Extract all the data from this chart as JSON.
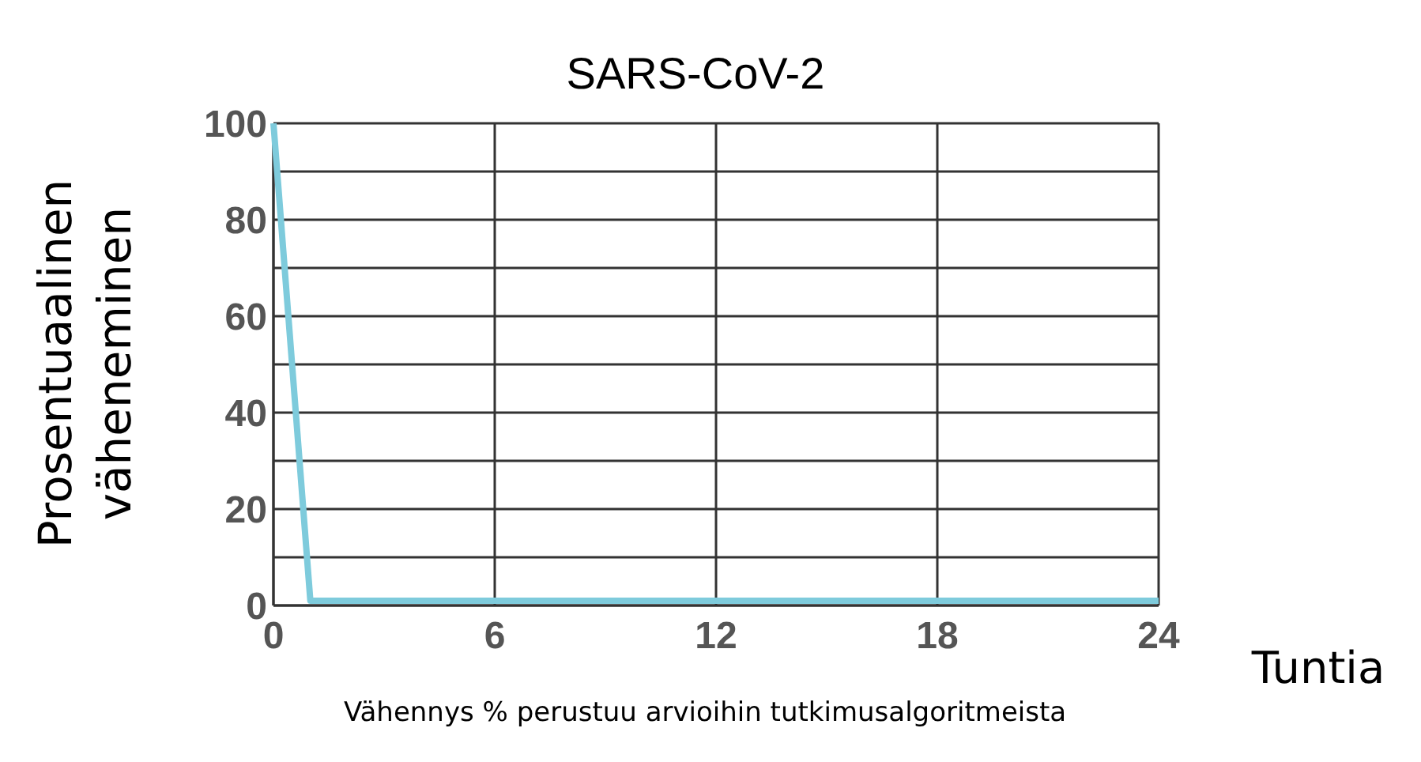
{
  "chart_data": {
    "type": "line",
    "title": "SARS-CoV-2",
    "xlabel": "Tuntia",
    "ylabel": "Prosentuaalinen väheneminen",
    "annotations": [
      "Vähennys % perustuu arvioihin tutkimusalgoritmeista"
    ],
    "x": [
      0,
      1,
      24
    ],
    "series": [
      {
        "color": "#7ecbdc",
        "values": [
          100,
          1,
          1
        ]
      }
    ],
    "xlim": [
      0,
      24
    ],
    "xticks": [
      0,
      6,
      12,
      18,
      24
    ],
    "ylim": [
      0,
      100
    ],
    "yticks": [
      0,
      {
        "value": 10,
        "label": null
      },
      20,
      {
        "value": 30,
        "label": null
      },
      40,
      {
        "value": 50,
        "label": null
      },
      60,
      {
        "value": 70,
        "label": null
      },
      80,
      {
        "value": 90,
        "label": null
      },
      100
    ],
    "grid": true,
    "marker": "none",
    "line_style": "solid"
  }
}
